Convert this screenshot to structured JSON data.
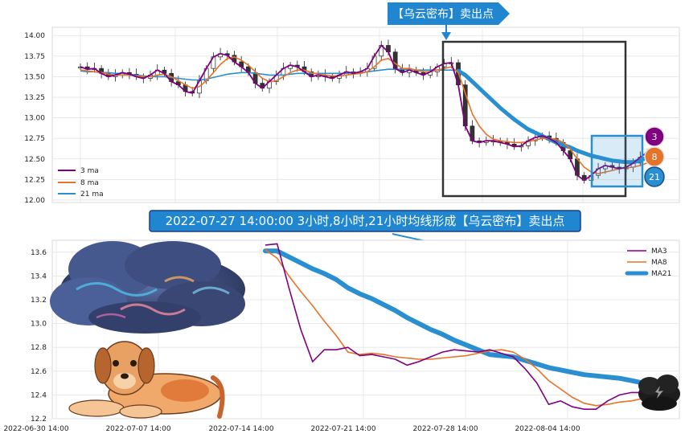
{
  "top_annotation": "【乌云密布】卖出点",
  "middle_annotation": "2022-07-27 14:00:00 3小时,8小时,21小时均线形成【乌云密布】卖出点",
  "badges": [
    "3",
    "8",
    "21"
  ],
  "colors": {
    "ma3": "#800080",
    "ma8": "#e6732a",
    "ma21": "#2a8fd1",
    "banner": "#1f86cf",
    "frame": "#333333"
  },
  "chart_data": [
    {
      "type": "candlestick",
      "ylim": [
        11.97,
        14.1
      ],
      "yticks": [
        "14.00",
        "13.75",
        "13.50",
        "13.25",
        "13.00",
        "12.75",
        "12.50",
        "12.25",
        "12.00"
      ],
      "grid": true,
      "legend_placement": "lower-left",
      "legend": [
        "3 ma",
        "8 ma",
        "21 ma"
      ],
      "series": [
        {
          "name": "3 ma",
          "values": [
            13.62,
            13.59,
            13.6,
            13.54,
            13.5,
            13.52,
            13.55,
            13.53,
            13.5,
            13.48,
            13.52,
            13.58,
            13.54,
            13.44,
            13.4,
            13.32,
            13.3,
            13.45,
            13.6,
            13.74,
            13.78,
            13.76,
            13.68,
            13.62,
            13.55,
            13.42,
            13.36,
            13.44,
            13.52,
            13.6,
            13.64,
            13.62,
            13.56,
            13.5,
            13.52,
            13.5,
            13.48,
            13.52,
            13.56,
            13.54,
            13.56,
            13.6,
            13.75,
            13.88,
            13.8,
            13.6,
            13.55,
            13.58,
            13.55,
            13.52,
            13.56,
            13.62,
            13.66,
            13.67,
            13.4,
            12.9,
            12.72,
            12.7,
            12.72,
            12.72,
            12.7,
            12.68,
            12.65,
            12.66,
            12.72,
            12.76,
            12.78,
            12.75,
            12.7,
            12.6,
            12.5,
            12.3,
            12.24,
            12.3,
            12.38,
            12.42,
            12.4,
            12.38,
            12.4,
            12.45,
            12.52,
            12.58
          ]
        },
        {
          "name": "8 ma",
          "values": [
            13.58,
            13.57,
            13.56,
            13.55,
            13.53,
            13.52,
            13.52,
            13.52,
            13.51,
            13.5,
            13.5,
            13.52,
            13.53,
            13.5,
            13.45,
            13.4,
            13.36,
            13.38,
            13.45,
            13.55,
            13.65,
            13.72,
            13.74,
            13.7,
            13.64,
            13.56,
            13.48,
            13.44,
            13.45,
            13.5,
            13.55,
            13.58,
            13.58,
            13.55,
            13.53,
            13.52,
            13.51,
            13.51,
            13.52,
            13.53,
            13.54,
            13.56,
            13.62,
            13.7,
            13.72,
            13.66,
            13.6,
            13.6,
            13.58,
            13.56,
            13.56,
            13.58,
            13.6,
            13.62,
            13.55,
            13.3,
            13.05,
            12.9,
            12.8,
            12.74,
            12.72,
            12.71,
            12.7,
            12.7,
            12.71,
            12.73,
            12.75,
            12.75,
            12.74,
            12.7,
            12.62,
            12.5,
            12.4,
            12.34,
            12.32,
            12.34,
            12.36,
            12.38,
            12.39,
            12.4,
            12.42,
            12.45
          ]
        },
        {
          "name": "21 ma",
          "values": [
            13.57,
            13.56,
            13.56,
            13.55,
            13.55,
            13.54,
            13.54,
            13.53,
            13.52,
            13.51,
            13.5,
            13.5,
            13.5,
            13.49,
            13.48,
            13.47,
            13.46,
            13.46,
            13.47,
            13.49,
            13.51,
            13.53,
            13.54,
            13.55,
            13.55,
            13.54,
            13.53,
            13.52,
            13.52,
            13.52,
            13.53,
            13.54,
            13.54,
            13.54,
            13.54,
            13.54,
            13.54,
            13.54,
            13.54,
            13.55,
            13.55,
            13.56,
            13.57,
            13.58,
            13.59,
            13.59,
            13.59,
            13.59,
            13.58,
            13.58,
            13.58,
            13.58,
            13.58,
            13.58,
            13.57,
            13.52,
            13.44,
            13.36,
            13.28,
            13.2,
            13.12,
            13.05,
            12.98,
            12.92,
            12.86,
            12.82,
            12.78,
            12.74,
            12.7,
            12.67,
            12.64,
            12.6,
            12.57,
            12.54,
            12.52,
            12.5,
            12.48,
            12.47,
            12.46,
            12.46,
            12.48,
            12.52
          ]
        }
      ]
    },
    {
      "type": "line",
      "ylim": [
        12.2,
        13.7
      ],
      "yticks": [
        "13.6",
        "13.4",
        "13.2",
        "13.0",
        "12.8",
        "12.6",
        "12.4",
        "12.2"
      ],
      "xticks": [
        "2022-06-30 14:00",
        "2022-07-07 14:00",
        "2022-07-14 14:00",
        "2022-07-21 14:00",
        "2022-07-28 14:00",
        "2022-08-04 14:00"
      ],
      "grid": true,
      "legend_placement": "top-right",
      "legend": [
        "MA3",
        "MA8",
        "MA21"
      ],
      "series": [
        {
          "name": "MA3",
          "values": [
            13.66,
            13.67,
            13.3,
            12.95,
            12.68,
            12.78,
            12.78,
            12.8,
            12.73,
            12.74,
            12.72,
            12.7,
            12.65,
            12.68,
            12.72,
            12.76,
            12.78,
            12.77,
            12.76,
            12.78,
            12.75,
            12.72,
            12.62,
            12.5,
            12.32,
            12.35,
            12.3,
            12.28,
            12.28,
            12.35,
            12.4,
            12.42,
            12.42
          ]
        },
        {
          "name": "MA8",
          "values": [
            13.62,
            13.55,
            13.4,
            13.27,
            13.15,
            13.02,
            12.9,
            12.76,
            12.74,
            12.75,
            12.74,
            12.72,
            12.71,
            12.7,
            12.7,
            12.71,
            12.72,
            12.73,
            12.75,
            12.77,
            12.78,
            12.76,
            12.7,
            12.62,
            12.52,
            12.45,
            12.38,
            12.33,
            12.31,
            12.32,
            12.34,
            12.35,
            12.37
          ]
        },
        {
          "name": "MA21",
          "values": [
            13.61,
            13.61,
            13.56,
            13.51,
            13.46,
            13.42,
            13.37,
            13.3,
            13.25,
            13.21,
            13.16,
            13.11,
            13.05,
            13.0,
            12.95,
            12.91,
            12.86,
            12.82,
            12.78,
            12.74,
            12.73,
            12.72,
            12.69,
            12.66,
            12.63,
            12.61,
            12.59,
            12.57,
            12.56,
            12.55,
            12.54,
            12.52,
            12.5
          ]
        }
      ]
    }
  ]
}
